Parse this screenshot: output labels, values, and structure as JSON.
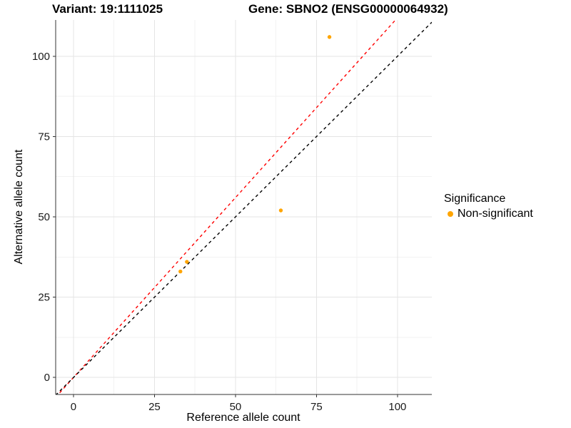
{
  "chart_data": {
    "type": "scatter",
    "title_variant": "Variant: 19:1111025",
    "title_gene": "Gene: SBNO2 (ENSG00000064932)",
    "xlabel": "Reference allele count",
    "ylabel": "Alternative allele count",
    "xlim": [
      -5.5,
      110.6
    ],
    "ylim": [
      -5.3,
      111.3
    ],
    "x_ticks": [
      0,
      25,
      50,
      75,
      100
    ],
    "y_ticks": [
      0,
      25,
      50,
      75,
      100
    ],
    "x_minor": [
      12.5,
      37.5,
      62.5,
      87.5
    ],
    "y_minor": [
      12.5,
      37.5,
      62.5,
      87.5
    ],
    "grid": true,
    "points": [
      {
        "x": 79,
        "y": 106,
        "series": "Non-significant"
      },
      {
        "x": 64,
        "y": 52,
        "series": "Non-significant"
      },
      {
        "x": 35,
        "y": 36,
        "series": "Non-significant"
      },
      {
        "x": 33,
        "y": 33,
        "series": "Non-significant"
      }
    ],
    "lines": [
      {
        "name": "alt-ref-ratio-line",
        "slope": 1.12,
        "intercept": 0,
        "color": "#FF0000",
        "style": "dashed"
      },
      {
        "name": "identity-line",
        "slope": 1.0,
        "intercept": 0,
        "color": "#000000",
        "style": "dashed"
      }
    ],
    "legend": {
      "title": "Significance",
      "position": "right",
      "items": [
        {
          "label": "Non-significant",
          "color": "#FFA500"
        }
      ]
    },
    "colors": {
      "point": "#FFA500",
      "grid_major": "#E4E4E4",
      "grid_minor": "#F2F2F2",
      "axis_line": "#333333",
      "tick_text": "#1A1A1A"
    }
  }
}
